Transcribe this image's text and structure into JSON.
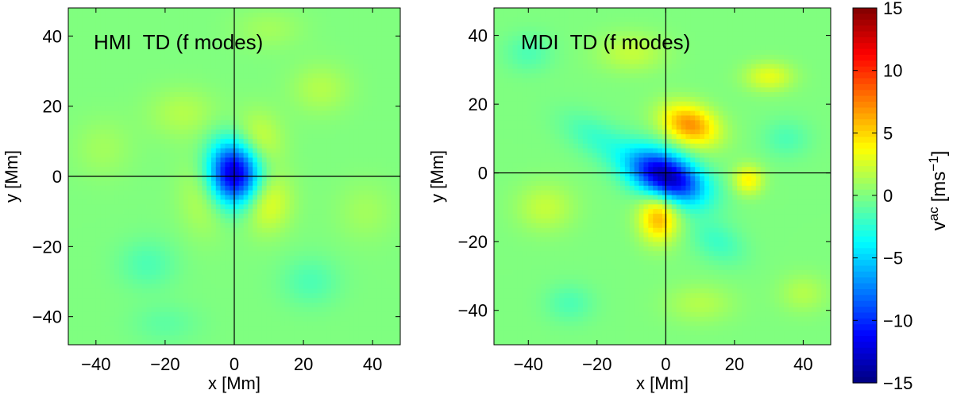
{
  "chart_data": [
    {
      "type": "heatmap",
      "panel": "left",
      "title": "HMI  TD (f modes)",
      "xlabel": "x [Mm]",
      "ylabel": "y [Mm]",
      "xlim": [
        -48,
        48
      ],
      "ylim": [
        -48,
        48
      ],
      "xticks": [
        -40,
        -20,
        0,
        20,
        40
      ],
      "yticks": [
        -40,
        -20,
        0,
        20,
        40
      ],
      "crosshair": [
        0,
        0
      ],
      "features": [
        {
          "x": 0,
          "y": 1,
          "sx": 5.5,
          "sy": 6.5,
          "value": -14
        },
        {
          "x": 6,
          "y": 9,
          "sx": 5,
          "sy": 6,
          "value": 3.5
        },
        {
          "x": 9,
          "y": -7,
          "sx": 5,
          "sy": 6,
          "value": 3.5
        },
        {
          "x": -8,
          "y": -4,
          "sx": 5,
          "sy": 8,
          "value": 2.5
        },
        {
          "x": -15,
          "y": 18,
          "sx": 7,
          "sy": 5,
          "value": 1.5
        },
        {
          "x": 25,
          "y": 25,
          "sx": 6,
          "sy": 5,
          "value": 1.5
        },
        {
          "x": -25,
          "y": -25,
          "sx": 6,
          "sy": 5,
          "value": -1.5
        },
        {
          "x": 22,
          "y": -30,
          "sx": 6,
          "sy": 5,
          "value": -1.5
        },
        {
          "x": -38,
          "y": 8,
          "sx": 6,
          "sy": 6,
          "value": 1
        },
        {
          "x": 38,
          "y": -10,
          "sx": 6,
          "sy": 6,
          "value": 1
        },
        {
          "x": -20,
          "y": -42,
          "sx": 7,
          "sy": 4,
          "value": -1
        },
        {
          "x": 10,
          "y": 42,
          "sx": 7,
          "sy": 4,
          "value": 1
        }
      ]
    },
    {
      "type": "heatmap",
      "panel": "right",
      "title": "MDI  TD (f modes)",
      "xlabel": "x [Mm]",
      "ylabel": "y [Mm]",
      "xlim": [
        -50,
        48
      ],
      "ylim": [
        -50,
        48
      ],
      "xticks": [
        -40,
        -20,
        0,
        20,
        40
      ],
      "yticks": [
        -40,
        -20,
        0,
        20,
        40
      ],
      "crosshair": [
        0,
        0
      ],
      "features": [
        {
          "x": 0,
          "y": -1,
          "sx": 8,
          "sy": 4.5,
          "value": -14,
          "angle": -25
        },
        {
          "x": 7,
          "y": 14,
          "sx": 6,
          "sy": 4,
          "value": 7,
          "angle": -20
        },
        {
          "x": -2,
          "y": -13,
          "sx": 4,
          "sy": 5,
          "value": 6
        },
        {
          "x": 24,
          "y": -2,
          "sx": 3,
          "sy": 3,
          "value": 4
        },
        {
          "x": 30,
          "y": 28,
          "sx": 5,
          "sy": 3,
          "value": 3
        },
        {
          "x": -20,
          "y": 10,
          "sx": 8,
          "sy": 4,
          "value": -2,
          "angle": -30
        },
        {
          "x": 15,
          "y": -20,
          "sx": 6,
          "sy": 4,
          "value": -2,
          "angle": -30
        },
        {
          "x": -35,
          "y": -10,
          "sx": 6,
          "sy": 5,
          "value": 2
        },
        {
          "x": 35,
          "y": 10,
          "sx": 5,
          "sy": 4,
          "value": -1.5
        },
        {
          "x": -10,
          "y": 35,
          "sx": 7,
          "sy": 4,
          "value": 2
        },
        {
          "x": 10,
          "y": -38,
          "sx": 7,
          "sy": 4,
          "value": 1.5
        },
        {
          "x": -40,
          "y": 35,
          "sx": 5,
          "sy": 4,
          "value": -1.5
        },
        {
          "x": 40,
          "y": -35,
          "sx": 5,
          "sy": 4,
          "value": 1.5
        },
        {
          "x": -28,
          "y": -38,
          "sx": 5,
          "sy": 4,
          "value": -1.5
        }
      ]
    }
  ],
  "colorbar": {
    "label_base": "v",
    "label_sup": "ac",
    "label_unit_open": "[ms",
    "label_unit_sup": "−1",
    "label_unit_close": "]",
    "clim": [
      -15,
      15
    ],
    "ticks": [
      -15,
      -10,
      -5,
      0,
      5,
      10,
      15
    ],
    "colormap": "jet"
  },
  "colors": {
    "axis": "#000000",
    "background": "#ffffff"
  }
}
